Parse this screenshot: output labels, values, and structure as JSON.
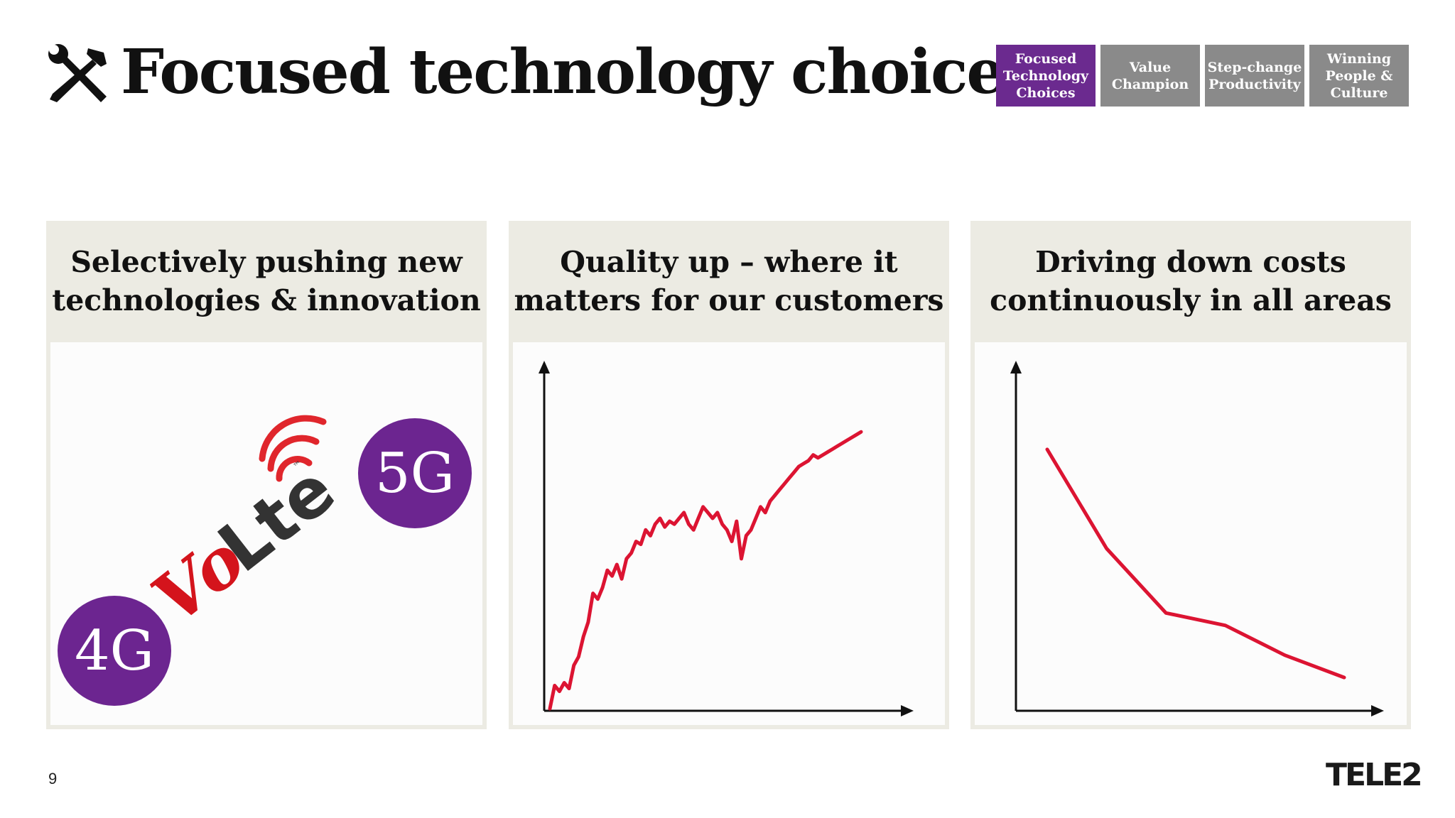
{
  "header": {
    "title": "Focused technology choices",
    "icon": "tools-icon"
  },
  "nav": {
    "items": [
      {
        "label": "Focused Technology Choices",
        "lines": [
          "Focused",
          "Technology",
          "Choices"
        ],
        "active": true
      },
      {
        "label": "Value Champion",
        "lines": [
          "Value",
          "Champion"
        ],
        "active": false
      },
      {
        "label": "Step-change Productivity",
        "lines": [
          "Step-change",
          "Productivity"
        ],
        "active": false
      },
      {
        "label": "Winning People & Culture",
        "lines": [
          "Winning",
          "People &",
          "Culture"
        ],
        "active": false
      }
    ],
    "active_color": "#6b2a8f",
    "inactive_color": "#8a8a8a"
  },
  "panels": [
    {
      "heading_lines": [
        "Selectively pushing new",
        "technologies & innovation"
      ],
      "badges": {
        "g4": "4G",
        "g5": "5G",
        "volte": "VoLte"
      }
    },
    {
      "heading_lines": [
        "Quality up – where it",
        "matters for our customers"
      ],
      "chart_data": {
        "type": "line",
        "title": "Quality up – where it matters for our customers",
        "xlabel": "",
        "ylabel": "",
        "trend": "increasing",
        "x": [
          0,
          1,
          2,
          3,
          4,
          5,
          6,
          7,
          8,
          9,
          10,
          11,
          12,
          13,
          14,
          15,
          16,
          17,
          18,
          19,
          20,
          21,
          22,
          23,
          24,
          25,
          26,
          27,
          28,
          29,
          30,
          31,
          32,
          33,
          34,
          35,
          36,
          37,
          38,
          39,
          40,
          41,
          42,
          43,
          44,
          45,
          46,
          47,
          48,
          49,
          50,
          51,
          52,
          53,
          54,
          55,
          56,
          57,
          58,
          59,
          60,
          61,
          62,
          63,
          64,
          65
        ],
        "values": [
          0,
          8,
          6,
          9,
          7,
          15,
          18,
          25,
          30,
          40,
          38,
          42,
          48,
          46,
          50,
          45,
          52,
          54,
          58,
          57,
          62,
          60,
          64,
          66,
          63,
          65,
          64,
          66,
          68,
          64,
          62,
          66,
          70,
          68,
          66,
          68,
          64,
          62,
          58,
          65,
          52,
          60,
          62,
          66,
          70,
          68,
          72,
          74,
          76,
          78,
          80,
          82,
          84,
          85,
          86,
          88,
          87,
          88,
          89,
          90,
          91,
          92,
          93,
          94,
          95,
          96
        ],
        "ylim": [
          0,
          100
        ],
        "color": "#dc1432"
      }
    },
    {
      "heading_lines": [
        "Driving down costs",
        "continuously in all areas"
      ],
      "chart_data": {
        "type": "line",
        "title": "Driving down costs continuously in all areas",
        "xlabel": "",
        "ylabel": "",
        "trend": "decreasing",
        "x": [
          0,
          1,
          2,
          3,
          4,
          5
        ],
        "values": [
          100,
          60,
          34,
          29,
          17,
          8
        ],
        "ylim": [
          0,
          110
        ],
        "color": "#dc1432"
      }
    }
  ],
  "footer": {
    "page_number": "9",
    "logo": "TELE2"
  }
}
